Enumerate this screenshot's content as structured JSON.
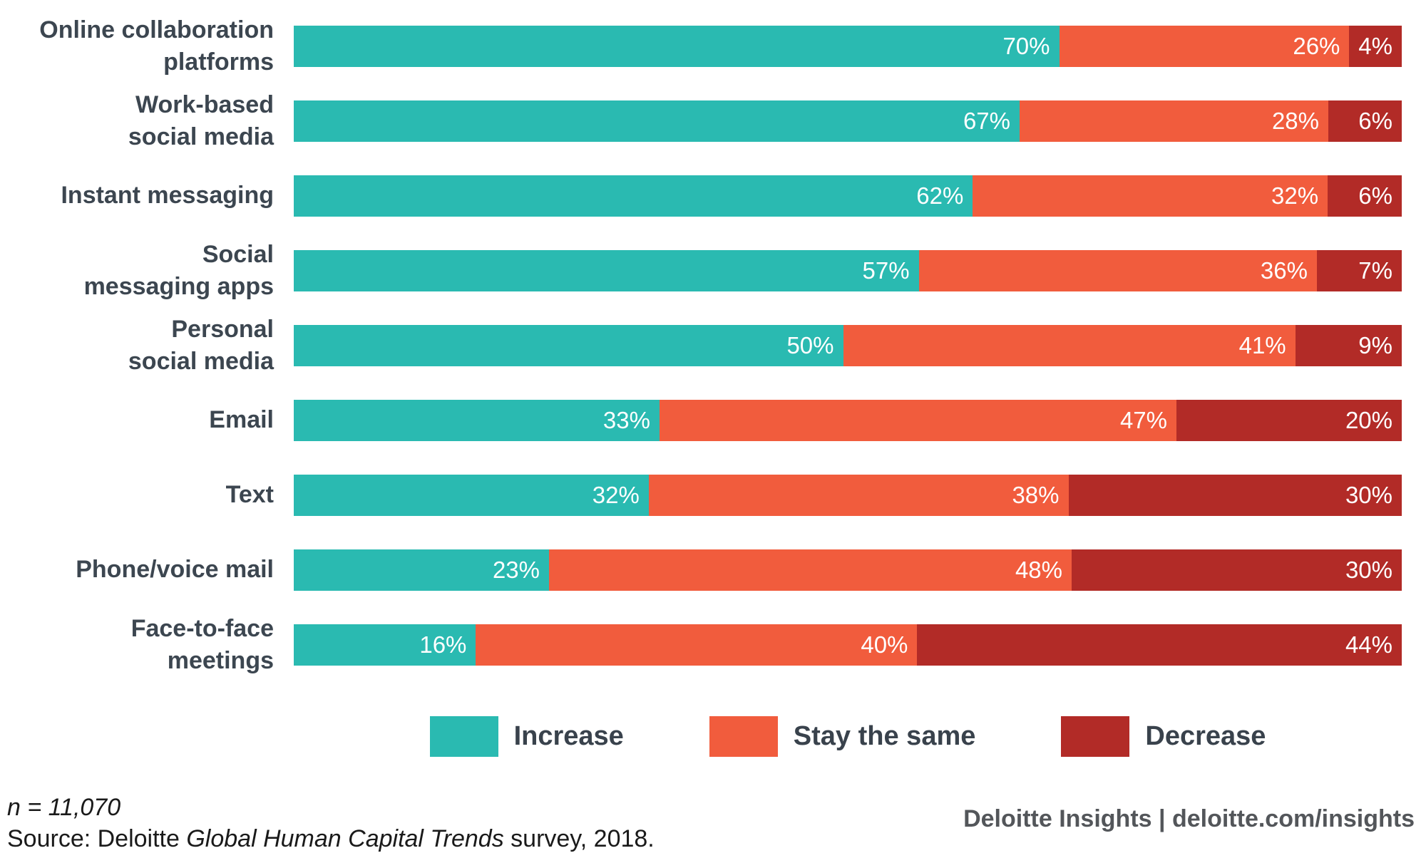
{
  "chart_data": {
    "type": "bar",
    "stacked": true,
    "orientation": "horizontal",
    "grid": false,
    "axis_range": [
      0,
      100
    ],
    "value_suffix": "%",
    "legend_position": "bottom",
    "categories": [
      "Online collaboration\nplatforms",
      "Work-based\nsocial media",
      "Instant messaging",
      "Social\nmessaging apps",
      "Personal\nsocial media",
      "Email",
      "Text",
      "Phone/voice mail",
      "Face-to-face\nmeetings"
    ],
    "series": [
      {
        "key": "increase",
        "name": "Increase",
        "color": "#2ABAB1",
        "values": [
          70,
          67,
          62,
          57,
          50,
          33,
          32,
          23,
          16
        ],
        "labels": [
          "70%",
          "67%",
          "62%",
          "57%",
          "50%",
          "33%",
          "32%",
          "23%",
          "16%"
        ]
      },
      {
        "key": "stay-the-same",
        "name": "Stay the same",
        "color": "#F15C3D",
        "values": [
          26,
          28,
          32,
          36,
          41,
          47,
          38,
          48,
          40
        ],
        "labels": [
          "26%",
          "28%",
          "32%",
          "36%",
          "41%",
          "47%",
          "38%",
          "48%",
          "40%"
        ]
      },
      {
        "key": "decrease",
        "name": "Decrease",
        "color": "#B22B27",
        "values": [
          4,
          6,
          6,
          7,
          9,
          20,
          30,
          30,
          44
        ],
        "labels": [
          "4%",
          "6%",
          "6%",
          "7%",
          "9%",
          "20%",
          "30%",
          "30%",
          "44%"
        ]
      }
    ]
  },
  "footer": {
    "sample_size": "n = 11,070",
    "source_prefix": "Source: Deloitte ",
    "source_title": "Global Human Capital Trends",
    "source_suffix": " survey, 2018.",
    "branding": "Deloitte Insights | deloitte.com/insights"
  },
  "colors": {
    "increase": "#2ABAB1",
    "stay_the_same": "#F15C3D",
    "decrease": "#B22B27",
    "category_label": "#3C4650",
    "bar_value_text": "#ffffff",
    "branding_text": "#53565A"
  }
}
